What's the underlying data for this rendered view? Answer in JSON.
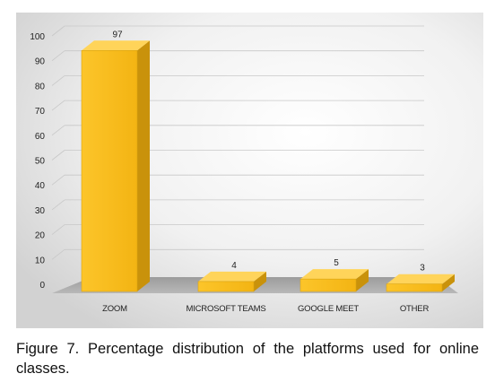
{
  "chart_data": {
    "type": "bar",
    "categories": [
      "ZOOM",
      "MICROSOFT TEAMS",
      "GOOGLE MEET",
      "OTHER"
    ],
    "values": [
      97,
      4,
      5,
      3
    ],
    "data_labels": [
      "97",
      "4",
      "5",
      "3"
    ],
    "ylim": [
      0,
      100
    ],
    "yticks": [
      0,
      10,
      20,
      30,
      40,
      50,
      60,
      70,
      80,
      90,
      100
    ],
    "grid": true,
    "legend": "none",
    "three_d": true,
    "colors": {
      "bar_front": "#F9BD1E",
      "bar_side": "#C9920B",
      "bar_top": "#FFD45A",
      "floor": "#A6A6A6",
      "background_light": "#FFFFFF",
      "background_dark": "#D9D9D9",
      "gridline": "#C8C8C8"
    }
  },
  "caption": {
    "label": "Figure 7.",
    "text": "Percentage distribution of the platforms used for online classes."
  }
}
